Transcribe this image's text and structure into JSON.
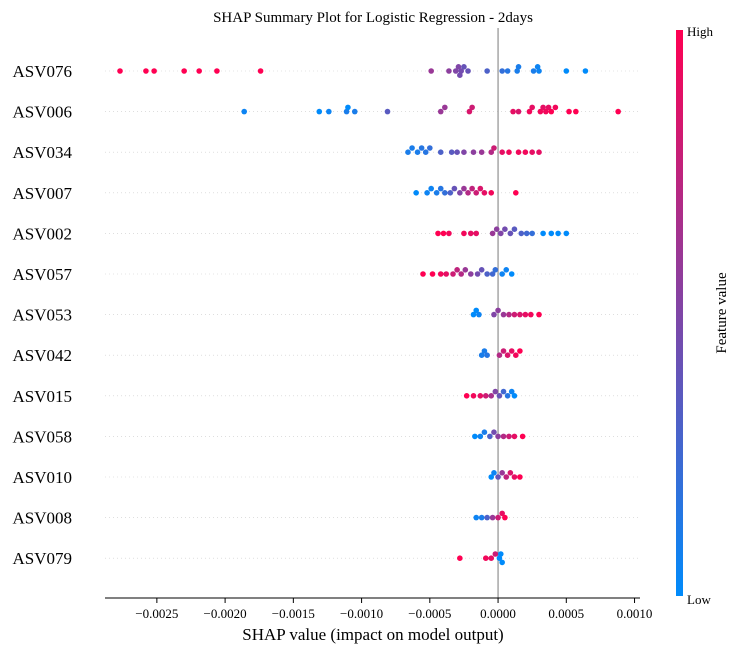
{
  "chart_data": {
    "type": "scatter",
    "title": "SHAP Summary Plot for Logistic Regression - 2days",
    "xlabel": "SHAP value (impact on model output)",
    "ylabel": "",
    "xlim": [
      -0.00288,
      0.00104
    ],
    "x_ticks": [
      {
        "value": -0.0025,
        "label": "−0.0025"
      },
      {
        "value": -0.002,
        "label": "−0.0020"
      },
      {
        "value": -0.0015,
        "label": "−0.0015"
      },
      {
        "value": -0.001,
        "label": "−0.0010"
      },
      {
        "value": -0.0005,
        "label": "−0.0005"
      },
      {
        "value": 0.0,
        "label": "0.0000"
      },
      {
        "value": 0.0005,
        "label": "0.0005"
      },
      {
        "value": 0.001,
        "label": "0.0010"
      }
    ],
    "zero_line": 0.0,
    "grid": false,
    "colorbar": {
      "label": "Feature value",
      "high_label": "High",
      "low_label": "Low",
      "high_color": "#ff0052",
      "low_color": "#008bfb"
    },
    "features": [
      {
        "name": "ASV076",
        "points": [
          [
            -0.00277,
            1
          ],
          [
            -0.00258,
            1
          ],
          [
            -0.00252,
            1
          ],
          [
            -0.0023,
            1
          ],
          [
            -0.00219,
            1
          ],
          [
            -0.00206,
            1
          ],
          [
            -0.00174,
            1
          ],
          [
            -0.00049,
            0.6
          ],
          [
            -0.00036,
            0.55
          ],
          [
            -0.00031,
            0.5
          ],
          [
            -0.00029,
            0.5
          ],
          [
            -0.00028,
            0.45
          ],
          [
            -0.00027,
            0.45
          ],
          [
            -0.00025,
            0.4
          ],
          [
            -0.00022,
            0.4
          ],
          [
            -8e-05,
            0.3
          ],
          [
            3e-05,
            0.2
          ],
          [
            7e-05,
            0.15
          ],
          [
            0.00014,
            0.1
          ],
          [
            0.00015,
            0.1
          ],
          [
            0.00026,
            0.1
          ],
          [
            0.00029,
            0.05
          ],
          [
            0.0003,
            0.05
          ],
          [
            0.0005,
            0.0
          ],
          [
            0.00064,
            0.0
          ]
        ]
      },
      {
        "name": "ASV006",
        "points": [
          [
            -0.00186,
            0.05
          ],
          [
            -0.00131,
            0.0
          ],
          [
            -0.00124,
            0.05
          ],
          [
            -0.00111,
            0.1
          ],
          [
            -0.0011,
            0.0
          ],
          [
            -0.00105,
            0.1
          ],
          [
            -0.00081,
            0.35
          ],
          [
            -0.00042,
            0.6
          ],
          [
            -0.00039,
            0.6
          ],
          [
            -0.00021,
            0.85
          ],
          [
            -0.00019,
            0.8
          ],
          [
            0.00011,
            0.9
          ],
          [
            0.00015,
            0.85
          ],
          [
            0.00023,
            0.95
          ],
          [
            0.00025,
            0.9
          ],
          [
            0.00031,
            0.95
          ],
          [
            0.00033,
            0.9
          ],
          [
            0.00035,
            0.95
          ],
          [
            0.00037,
            0.9
          ],
          [
            0.00039,
            1
          ],
          [
            0.00042,
            0.95
          ],
          [
            0.00052,
            1
          ],
          [
            0.00057,
            1
          ],
          [
            0.00088,
            1
          ]
        ]
      },
      {
        "name": "ASV034",
        "points": [
          [
            -0.00066,
            0.1
          ],
          [
            -0.00063,
            0.1
          ],
          [
            -0.00059,
            0.1
          ],
          [
            -0.00056,
            0.15
          ],
          [
            -0.00053,
            0.15
          ],
          [
            -0.0005,
            0.2
          ],
          [
            -0.00042,
            0.3
          ],
          [
            -0.00034,
            0.35
          ],
          [
            -0.0003,
            0.4
          ],
          [
            -0.00025,
            0.5
          ],
          [
            -0.00018,
            0.55
          ],
          [
            -0.00012,
            0.6
          ],
          [
            -5e-05,
            0.7
          ],
          [
            -3e-05,
            0.8
          ],
          [
            3e-05,
            0.9
          ],
          [
            8e-05,
            0.95
          ],
          [
            0.00015,
            0.95
          ],
          [
            0.0002,
            0.95
          ],
          [
            0.00025,
            0.9
          ],
          [
            0.0003,
            0.9
          ]
        ]
      },
      {
        "name": "ASV007",
        "points": [
          [
            -0.0006,
            0.0
          ],
          [
            -0.00052,
            0.05
          ],
          [
            -0.00049,
            0.05
          ],
          [
            -0.00045,
            0.1
          ],
          [
            -0.00042,
            0.15
          ],
          [
            -0.00039,
            0.2
          ],
          [
            -0.00035,
            0.3
          ],
          [
            -0.00032,
            0.4
          ],
          [
            -0.00028,
            0.5
          ],
          [
            -0.00025,
            0.6
          ],
          [
            -0.00022,
            0.7
          ],
          [
            -0.00019,
            0.75
          ],
          [
            -0.00016,
            0.8
          ],
          [
            -0.00013,
            0.85
          ],
          [
            -0.0001,
            0.9
          ],
          [
            -5e-05,
            0.95
          ],
          [
            0.00013,
            1
          ]
        ]
      },
      {
        "name": "ASV002",
        "points": [
          [
            -0.00044,
            1
          ],
          [
            -0.0004,
            1
          ],
          [
            -0.00036,
            0.95
          ],
          [
            -0.00025,
            0.95
          ],
          [
            -0.0002,
            0.9
          ],
          [
            -0.00016,
            0.9
          ],
          [
            -4e-05,
            0.6
          ],
          [
            -1e-05,
            0.55
          ],
          [
            2e-05,
            0.5
          ],
          [
            5e-05,
            0.45
          ],
          [
            9e-05,
            0.4
          ],
          [
            0.00012,
            0.35
          ],
          [
            0.00017,
            0.3
          ],
          [
            0.00021,
            0.25
          ],
          [
            0.00025,
            0.2
          ],
          [
            0.00033,
            0.0
          ],
          [
            0.00039,
            0.0
          ],
          [
            0.00044,
            0.0
          ],
          [
            0.0005,
            0.0
          ]
        ]
      },
      {
        "name": "ASV057",
        "points": [
          [
            -0.00055,
            1
          ],
          [
            -0.00048,
            1
          ],
          [
            -0.00042,
            0.95
          ],
          [
            -0.00038,
            0.9
          ],
          [
            -0.00033,
            0.8
          ],
          [
            -0.0003,
            0.75
          ],
          [
            -0.00027,
            0.7
          ],
          [
            -0.00024,
            0.6
          ],
          [
            -0.0002,
            0.55
          ],
          [
            -0.00015,
            0.45
          ],
          [
            -0.00012,
            0.4
          ],
          [
            -8e-05,
            0.3
          ],
          [
            -4e-05,
            0.25
          ],
          [
            -2e-05,
            0.2
          ],
          [
            3e-05,
            0.05
          ],
          [
            6e-05,
            0.05
          ],
          [
            0.0001,
            0.0
          ]
        ]
      },
      {
        "name": "ASV053",
        "points": [
          [
            -0.00018,
            0.0
          ],
          [
            -0.00016,
            0.0
          ],
          [
            -0.00014,
            0.05
          ],
          [
            -3e-05,
            0.5
          ],
          [
            0.0,
            0.55
          ],
          [
            4e-05,
            0.6
          ],
          [
            8e-05,
            0.7
          ],
          [
            0.00012,
            0.8
          ],
          [
            0.00016,
            0.85
          ],
          [
            0.0002,
            0.9
          ],
          [
            0.00024,
            0.95
          ],
          [
            0.0003,
            1
          ]
        ]
      },
      {
        "name": "ASV042",
        "points": [
          [
            -0.00012,
            0.1
          ],
          [
            -0.0001,
            0.1
          ],
          [
            -8e-05,
            0.15
          ],
          [
            1e-05,
            0.7
          ],
          [
            4e-05,
            0.8
          ],
          [
            7e-05,
            0.85
          ],
          [
            0.0001,
            0.9
          ],
          [
            0.00013,
            0.95
          ],
          [
            0.00016,
            1
          ]
        ]
      },
      {
        "name": "ASV015",
        "points": [
          [
            -0.00023,
            1
          ],
          [
            -0.00018,
            0.95
          ],
          [
            -0.00013,
            0.9
          ],
          [
            -9e-05,
            0.8
          ],
          [
            -5e-05,
            0.65
          ],
          [
            -2e-05,
            0.5
          ],
          [
            1e-05,
            0.4
          ],
          [
            4e-05,
            0.25
          ],
          [
            7e-05,
            0.15
          ],
          [
            0.0001,
            0.05
          ],
          [
            0.00012,
            0.0
          ]
        ]
      },
      {
        "name": "ASV058",
        "points": [
          [
            -0.00017,
            0.0
          ],
          [
            -0.00013,
            0.05
          ],
          [
            -0.0001,
            0.1
          ],
          [
            -6e-05,
            0.3
          ],
          [
            -3e-05,
            0.45
          ],
          [
            0.0,
            0.55
          ],
          [
            4e-05,
            0.7
          ],
          [
            8e-05,
            0.8
          ],
          [
            0.00012,
            0.9
          ],
          [
            0.00018,
            1
          ]
        ]
      },
      {
        "name": "ASV010",
        "points": [
          [
            -5e-05,
            0.0
          ],
          [
            -3e-05,
            0.05
          ],
          [
            0.0,
            0.4
          ],
          [
            3e-05,
            0.6
          ],
          [
            6e-05,
            0.75
          ],
          [
            9e-05,
            0.85
          ],
          [
            0.00012,
            0.9
          ],
          [
            0.00016,
            1
          ]
        ]
      },
      {
        "name": "ASV008",
        "points": [
          [
            -0.00016,
            0.05
          ],
          [
            -0.00012,
            0.1
          ],
          [
            -8e-05,
            0.3
          ],
          [
            -4e-05,
            0.6
          ],
          [
            0.0,
            0.8
          ],
          [
            3e-05,
            0.9
          ],
          [
            5e-05,
            1
          ]
        ]
      },
      {
        "name": "ASV079",
        "points": [
          [
            -0.00028,
            1
          ],
          [
            -9e-05,
            0.95
          ],
          [
            -5e-05,
            0.9
          ],
          [
            -2e-05,
            0.8
          ],
          [
            1e-05,
            0.0
          ],
          [
            2e-05,
            0.0
          ],
          [
            3e-05,
            0.0
          ]
        ]
      }
    ]
  }
}
